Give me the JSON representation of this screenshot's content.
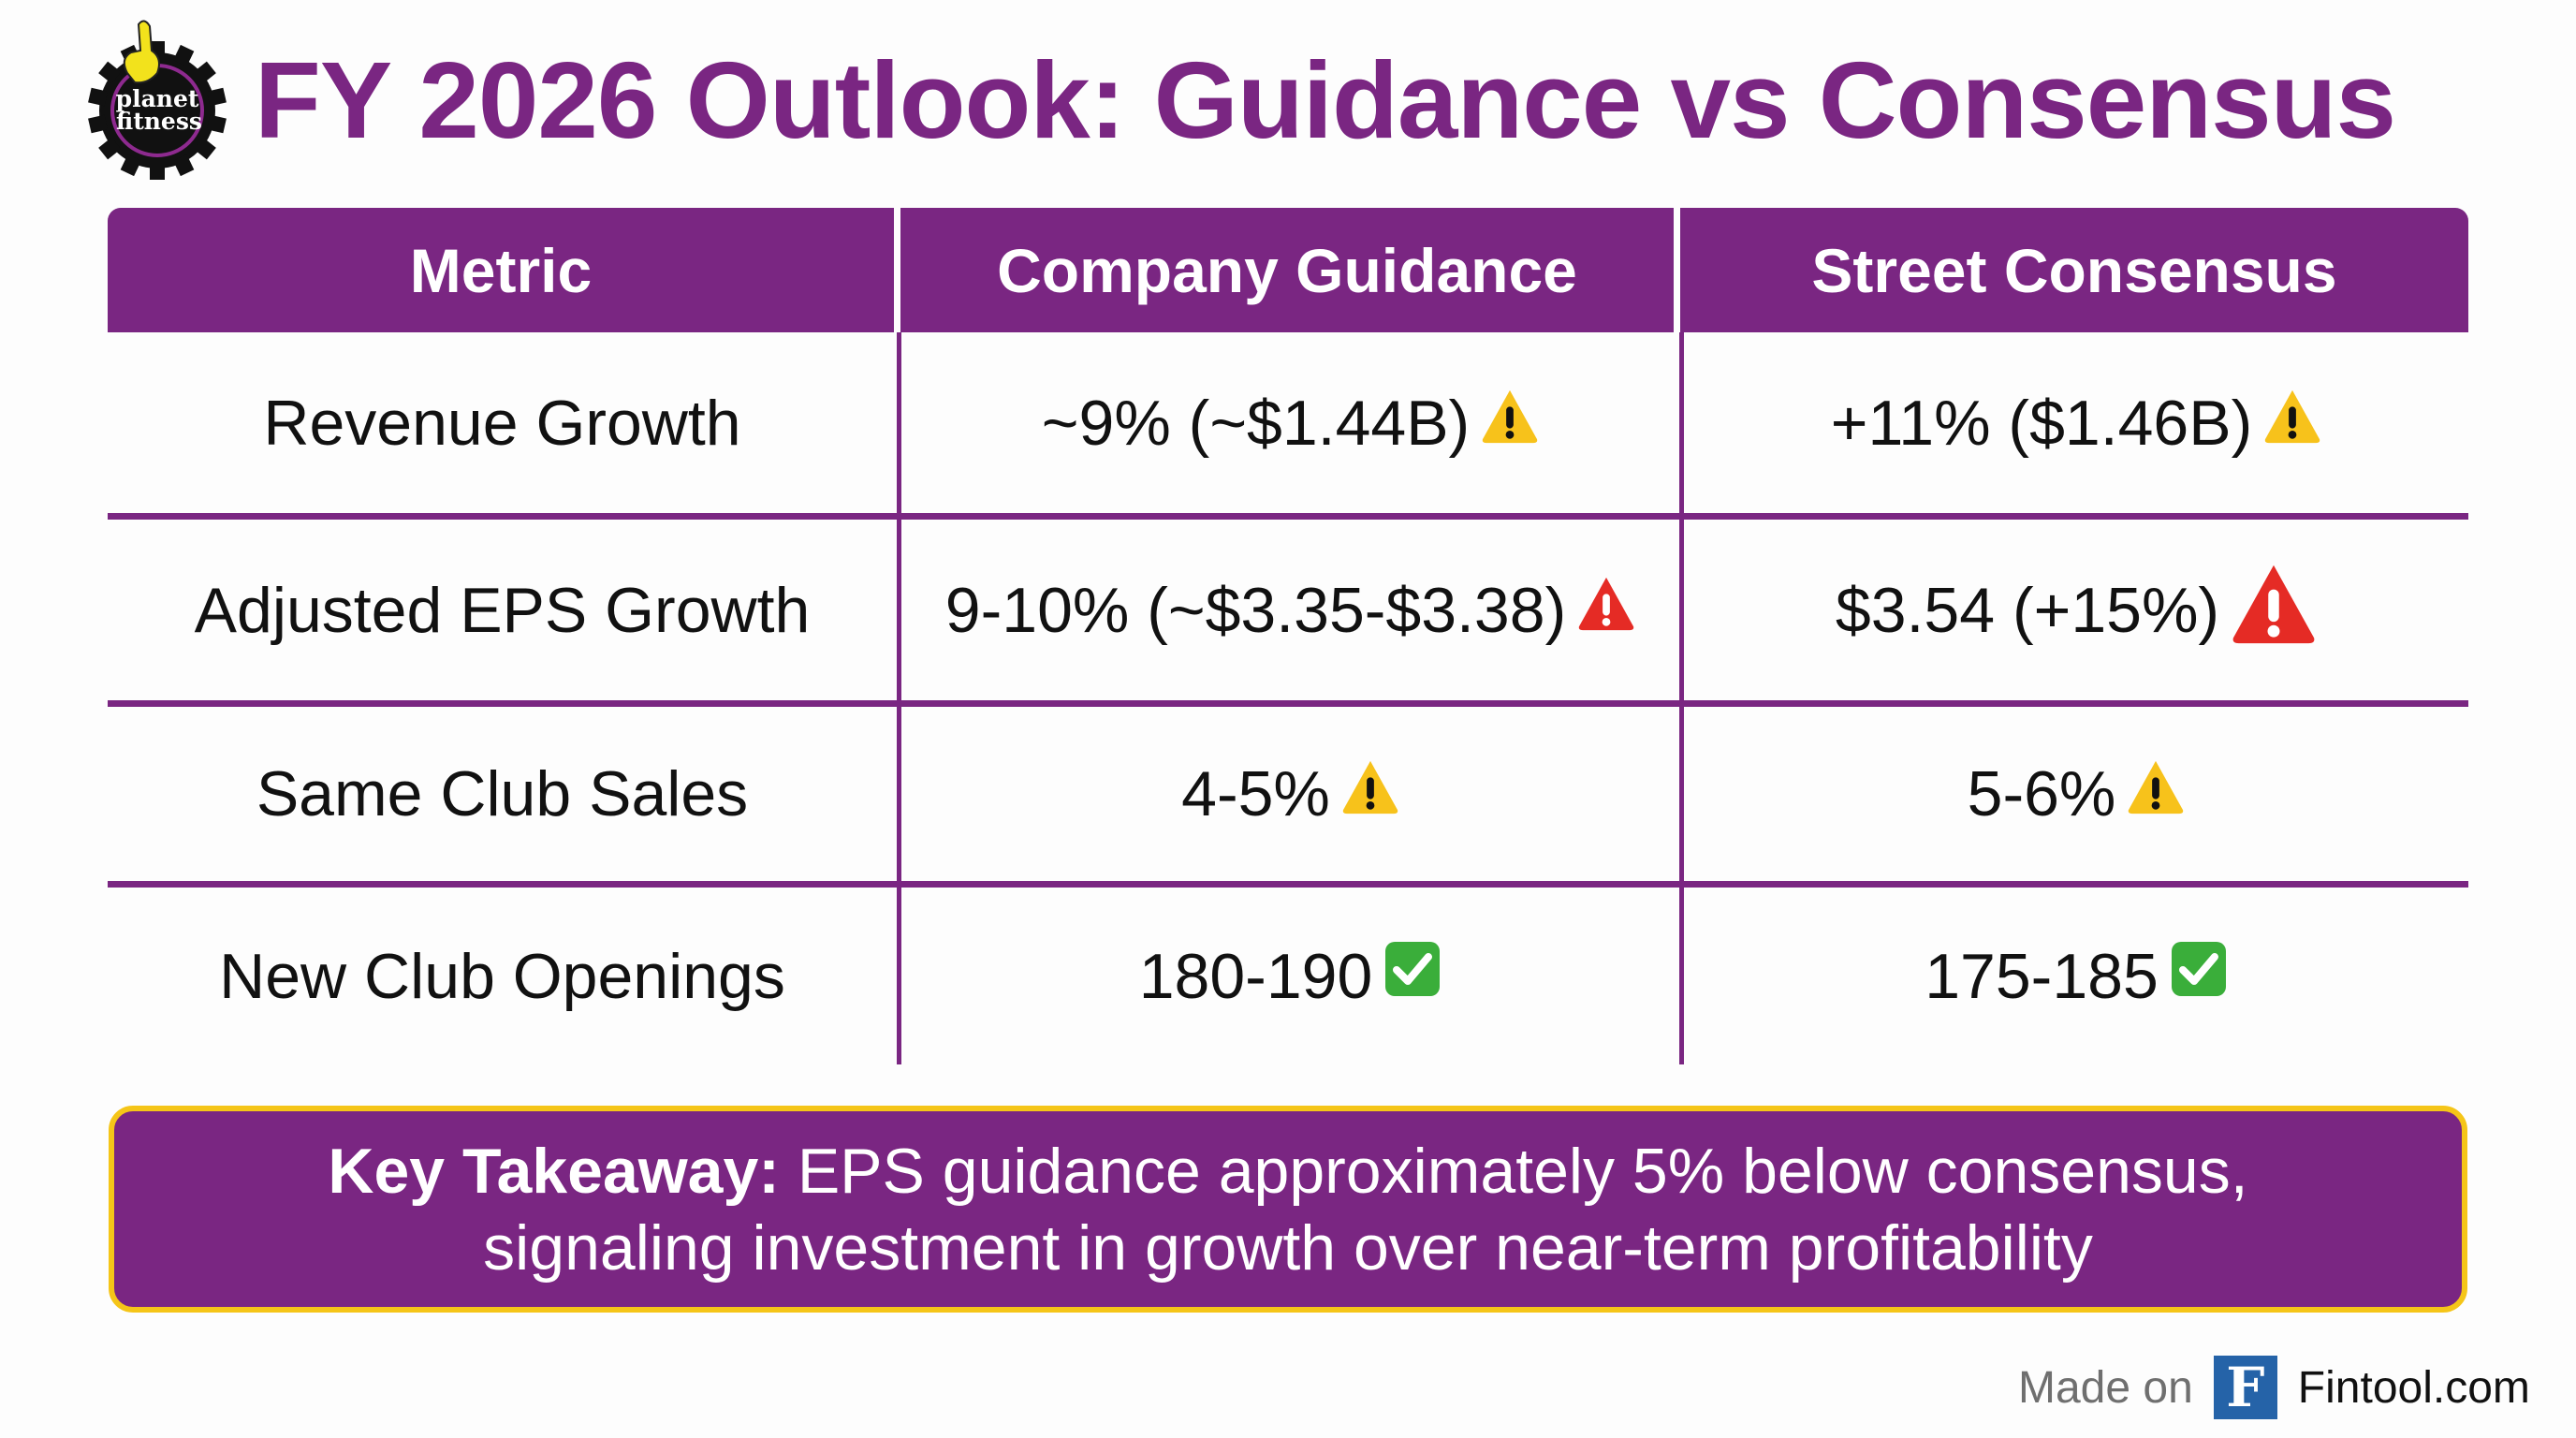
{
  "logo": {
    "text": "planet fitness",
    "colors": {
      "gear": "#111111",
      "hand": "#f2e21c",
      "ring": "#8e2a8f"
    }
  },
  "title": "FY 2026 Outlook: Guidance vs Consensus",
  "table": {
    "headers": [
      "Metric",
      "Company Guidance",
      "Street Consensus"
    ],
    "rows": [
      {
        "metric": "Revenue Growth",
        "guidance": "~9% (~$1.44B)",
        "guidance_icon": "warning-icon",
        "consensus": "+11% ($1.46B)",
        "consensus_icon": "warning-icon"
      },
      {
        "metric": "Adjusted EPS Growth",
        "guidance": "9-10% (~$3.35-$3.38)",
        "guidance_icon": "alert-icon",
        "consensus": "$3.54 (+15%)",
        "consensus_icon": "alert-icon"
      },
      {
        "metric": "Same Club Sales",
        "guidance": "4-5%",
        "guidance_icon": "warning-icon",
        "consensus": "5-6%",
        "consensus_icon": "warning-icon"
      },
      {
        "metric": "New Club Openings",
        "guidance": "180-190",
        "guidance_icon": "check-icon",
        "consensus": "175-185",
        "consensus_icon": "check-icon"
      }
    ]
  },
  "callout": {
    "label": "Key Takeaway:",
    "line1": " EPS guidance approximately 5% below consensus,",
    "line2": "signaling investment in growth over near-term profitability"
  },
  "footer": {
    "made_on": "Made on",
    "logo_letter": "F",
    "site": "Fintool.com"
  },
  "colors": {
    "accent": "#7a2682",
    "callout_border": "#f5c518",
    "warning": "#f7c21b",
    "alert": "#e52b25",
    "check": "#3aae3a",
    "fintool": "#2563a8"
  }
}
